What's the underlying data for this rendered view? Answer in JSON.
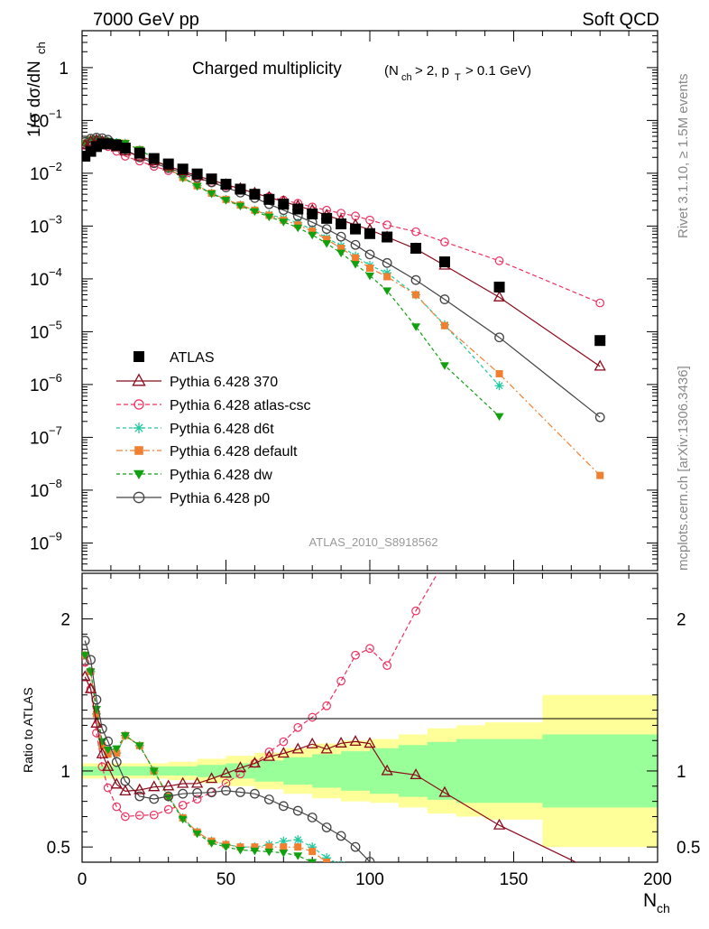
{
  "header": {
    "left": "7000 GeV pp",
    "right": "Soft QCD"
  },
  "side_text": {
    "rivet": "Rivet 3.1.10, ≥ 1.5M events",
    "mcplots": "mcplots.cern.ch [arXiv:1306.3436]"
  },
  "analysis_id": "ATLAS_2010_S8918562",
  "chart_data": {
    "type": "line",
    "title": "Charged multiplicity",
    "title_condition": "(N_ch > 2, p_T > 0.1 GeV)",
    "xlabel": "N_ch",
    "ylabel_main": "1/σ dσ/dN_ch",
    "ylabel_ratio": "Ratio to ATLAS",
    "xlim": [
      0,
      200
    ],
    "ylim_main": [
      3e-10,
      5
    ],
    "ylim_ratio": [
      0.4,
      2.3
    ],
    "yscale_main": "log",
    "grid": false,
    "legend_position": "bottom-left",
    "x_ticks": [
      "0",
      "50",
      "100",
      "150",
      "200"
    ],
    "y_ticks_main": [
      "10^{-9}",
      "10^{-8}",
      "10^{-7}",
      "10^{-6}",
      "10^{-5}",
      "10^{-4}",
      "10^{-3}",
      "10^{-2}",
      "10^{-1}",
      "1"
    ],
    "y_ticks_ratio": [
      "0.5",
      "1",
      "2"
    ],
    "colors": {
      "atlas": "#000000",
      "p370": "#8b0a1a",
      "atlas_csc": "#ee3060",
      "d6t": "#20c8a0",
      "default": "#f08030",
      "dw": "#10a010",
      "p0": "#444444",
      "band_inner": "#99ff99",
      "band_outer": "#ffff99"
    },
    "band_x": [
      0,
      10,
      20,
      30,
      40,
      50,
      60,
      70,
      80,
      90,
      100,
      110,
      120,
      130,
      140,
      160,
      200
    ],
    "band_inner_rel": [
      0.03,
      0.03,
      0.03,
      0.03,
      0.04,
      0.05,
      0.07,
      0.09,
      0.11,
      0.13,
      0.15,
      0.17,
      0.19,
      0.21,
      0.21,
      0.24,
      0.24
    ],
    "band_outer_rel": [
      0.05,
      0.05,
      0.05,
      0.06,
      0.08,
      0.1,
      0.12,
      0.15,
      0.18,
      0.2,
      0.21,
      0.24,
      0.28,
      0.3,
      0.32,
      0.5,
      0.5
    ],
    "series": [
      {
        "name": "ATLAS",
        "key": "atlas",
        "x": [
          1,
          3,
          5,
          7,
          9,
          12,
          15,
          20,
          25,
          30,
          35,
          40,
          45,
          50,
          55,
          60,
          65,
          70,
          75,
          80,
          85,
          90,
          95,
          100,
          106,
          116,
          126,
          145,
          180
        ],
        "y": [
          0.021,
          0.026,
          0.032,
          0.036,
          0.036,
          0.034,
          0.03,
          0.024,
          0.019,
          0.015,
          0.012,
          0.0097,
          0.0078,
          0.0062,
          0.005,
          0.004,
          0.0032,
          0.0026,
          0.0021,
          0.0017,
          0.0014,
          0.0011,
          0.00088,
          0.00072,
          0.00062,
          0.00038,
          0.00021,
          7e-05,
          6.8e-06
        ]
      },
      {
        "name": "Pythia 6.428 370",
        "key": "p370",
        "x": [
          1,
          3,
          5,
          7,
          9,
          12,
          15,
          20,
          25,
          30,
          35,
          40,
          45,
          50,
          55,
          60,
          65,
          70,
          75,
          80,
          85,
          90,
          95,
          100,
          106,
          116,
          126,
          145,
          180
        ],
        "y": [
          0.034,
          0.04,
          0.042,
          0.04,
          0.037,
          0.031,
          0.026,
          0.021,
          0.017,
          0.0135,
          0.011,
          0.0089,
          0.0074,
          0.0061,
          0.0051,
          0.0042,
          0.0035,
          0.0029,
          0.0024,
          0.002,
          0.0016,
          0.0013,
          0.00105,
          0.00085,
          0.00062,
          0.00037,
          0.00018,
          4.5e-05,
          2.2e-06
        ]
      },
      {
        "name": "Pythia 6.428 atlas-csc",
        "key": "atlas_csc",
        "x": [
          1,
          3,
          5,
          7,
          9,
          12,
          15,
          20,
          25,
          30,
          35,
          40,
          45,
          50,
          55,
          60,
          65,
          70,
          75,
          80,
          85,
          90,
          95,
          100,
          106,
          116,
          126,
          145,
          180
        ],
        "y": [
          0.036,
          0.04,
          0.04,
          0.037,
          0.032,
          0.026,
          0.021,
          0.017,
          0.0135,
          0.0112,
          0.0093,
          0.0079,
          0.0067,
          0.0057,
          0.0049,
          0.0042,
          0.0036,
          0.0031,
          0.0027,
          0.0023,
          0.002,
          0.00175,
          0.00155,
          0.0013,
          0.00105,
          0.00078,
          0.0005,
          0.00022,
          3.5e-05
        ]
      },
      {
        "name": "Pythia 6.428 d6t",
        "key": "d6t",
        "x": [
          1,
          3,
          5,
          7,
          9,
          12,
          15,
          20,
          25,
          30,
          35,
          40,
          45,
          50,
          55,
          60,
          65,
          70,
          75,
          80,
          85,
          90,
          95,
          100,
          106,
          116,
          126,
          145
        ],
        "y": [
          0.037,
          0.043,
          0.044,
          0.042,
          0.04,
          0.038,
          0.037,
          0.028,
          0.019,
          0.0125,
          0.0083,
          0.0058,
          0.0042,
          0.0032,
          0.0025,
          0.002,
          0.00165,
          0.0014,
          0.00115,
          0.00085,
          0.0006,
          0.00042,
          0.00027,
          0.00018,
          0.00013,
          5e-05,
          1.35e-05,
          9.5e-07
        ]
      },
      {
        "name": "Pythia 6.428 default",
        "key": "default",
        "x": [
          1,
          3,
          5,
          7,
          9,
          12,
          15,
          20,
          25,
          30,
          35,
          40,
          45,
          50,
          55,
          60,
          65,
          70,
          75,
          80,
          85,
          90,
          95,
          100,
          106,
          116,
          126,
          145,
          180
        ],
        "y": [
          0.037,
          0.043,
          0.044,
          0.042,
          0.04,
          0.038,
          0.037,
          0.028,
          0.019,
          0.0125,
          0.0083,
          0.0058,
          0.0042,
          0.0032,
          0.0025,
          0.002,
          0.0016,
          0.0013,
          0.00105,
          0.0008,
          0.00056,
          0.00038,
          0.00025,
          0.00016,
          0.00011,
          5e-05,
          1.3e-05,
          1.6e-06,
          1.9e-08
        ]
      },
      {
        "name": "Pythia 6.428 dw",
        "key": "dw",
        "x": [
          1,
          3,
          5,
          7,
          9,
          12,
          15,
          20,
          25,
          30,
          35,
          40,
          45,
          50,
          55,
          60,
          65,
          70,
          75,
          80,
          85,
          90,
          95,
          100,
          106,
          116,
          126,
          145
        ],
        "y": [
          0.037,
          0.043,
          0.045,
          0.043,
          0.041,
          0.039,
          0.037,
          0.028,
          0.019,
          0.0124,
          0.0082,
          0.0057,
          0.0041,
          0.0031,
          0.0024,
          0.0019,
          0.0015,
          0.0012,
          0.00093,
          0.00068,
          0.00047,
          0.00031,
          0.00019,
          0.000115,
          6e-05,
          1.25e-05,
          2.3e-06,
          2.5e-07
        ]
      },
      {
        "name": "Pythia 6.428 p0",
        "key": "p0",
        "x": [
          1,
          3,
          5,
          7,
          9,
          12,
          15,
          20,
          25,
          30,
          35,
          40,
          45,
          50,
          55,
          60,
          65,
          70,
          75,
          80,
          85,
          90,
          95,
          100,
          106,
          116,
          126,
          145,
          180
        ],
        "y": [
          0.039,
          0.045,
          0.047,
          0.046,
          0.043,
          0.036,
          0.028,
          0.02,
          0.0155,
          0.0125,
          0.0102,
          0.0083,
          0.0067,
          0.0054,
          0.0043,
          0.0034,
          0.0026,
          0.002,
          0.00155,
          0.00118,
          0.00088,
          0.00063,
          0.00044,
          0.00029,
          0.0002,
          9.5e-05,
          4.1e-05,
          7.8e-06,
          2.4e-07
        ]
      }
    ]
  }
}
